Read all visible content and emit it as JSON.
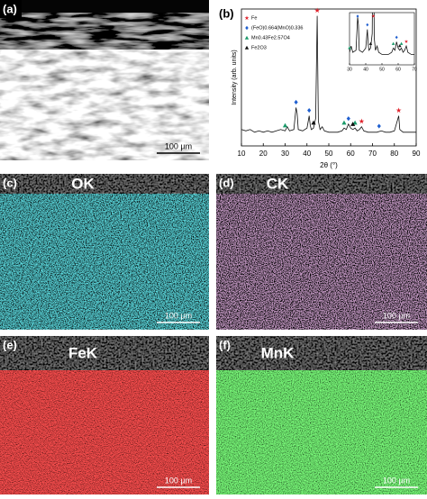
{
  "panels": [
    {
      "label": "(a)",
      "scale_bar": "100 µm"
    },
    {
      "label": "(b)"
    },
    {
      "label": "(c)",
      "element": "OK",
      "scale_bar": "100 µm"
    },
    {
      "label": "(d)",
      "element": "CK",
      "scale_bar": "100 µm"
    },
    {
      "label": "(e)",
      "element": "FeK",
      "scale_bar": "100 µm"
    },
    {
      "label": "(f)",
      "element": "MnK",
      "scale_bar": "100 µm"
    }
  ],
  "chart_data": {
    "type": "line",
    "x_label": "2θ (°)",
    "y_label": "Intensity (arb. units)",
    "xlim": [
      10,
      90
    ],
    "xticks": [
      10,
      20,
      30,
      40,
      50,
      60,
      70,
      80,
      90
    ],
    "ylim": [
      0,
      100
    ],
    "series": [
      {
        "color": "#111111",
        "x": [
          10,
          12,
          14,
          16,
          18,
          20,
          22,
          24,
          26,
          28,
          30,
          31,
          32,
          34,
          35,
          35.5,
          36,
          38,
          40,
          41,
          41.5,
          42,
          43,
          44,
          44.7,
          45.2,
          46,
          47,
          48,
          50,
          52,
          54,
          56,
          57,
          58,
          59,
          60,
          61,
          62,
          63,
          64,
          65,
          66,
          68,
          70,
          72,
          74,
          76,
          78,
          80,
          82,
          82.5,
          84,
          86,
          88,
          90
        ],
        "values": [
          12,
          11,
          12,
          10,
          11,
          10,
          11,
          10,
          11,
          12,
          11,
          14,
          11,
          12,
          28,
          24,
          12,
          11,
          13,
          22,
          15,
          12,
          13,
          20,
          95,
          18,
          12,
          14,
          11,
          10,
          10,
          10,
          11,
          13,
          12,
          16,
          13,
          12,
          13,
          11,
          12,
          14,
          11,
          10,
          10,
          10,
          11,
          10,
          10,
          11,
          22,
          12,
          10,
          10,
          10,
          10
        ]
      }
    ],
    "phases": [
      {
        "name": "Fe",
        "color": "#e0202a",
        "symbol": "star"
      },
      {
        "name": "(FeO)0.664(MnO)0.336",
        "color": "#1f5fd0",
        "symbol": "diamond"
      },
      {
        "name": "Mn0.43Fe2.57O4",
        "color": "#1a9a6a",
        "symbol": "triangle"
      },
      {
        "name": "Fe2O3",
        "color": "#111111",
        "symbol": "triangle"
      }
    ],
    "peak_markers": [
      {
        "x": 44.7,
        "phase": 0
      },
      {
        "x": 65,
        "phase": 0
      },
      {
        "x": 82,
        "phase": 0
      },
      {
        "x": 35,
        "phase": 1
      },
      {
        "x": 41,
        "phase": 1
      },
      {
        "x": 59,
        "phase": 1
      },
      {
        "x": 73,
        "phase": 1
      },
      {
        "x": 30,
        "phase": 2
      },
      {
        "x": 57,
        "phase": 2
      },
      {
        "x": 62,
        "phase": 2
      },
      {
        "x": 43,
        "phase": 3
      },
      {
        "x": 61,
        "phase": 3
      }
    ],
    "inset": {
      "xlim": [
        30,
        70
      ],
      "xticks": [
        30,
        40,
        50,
        60,
        70
      ],
      "ylim": [
        5,
        30
      ]
    }
  }
}
